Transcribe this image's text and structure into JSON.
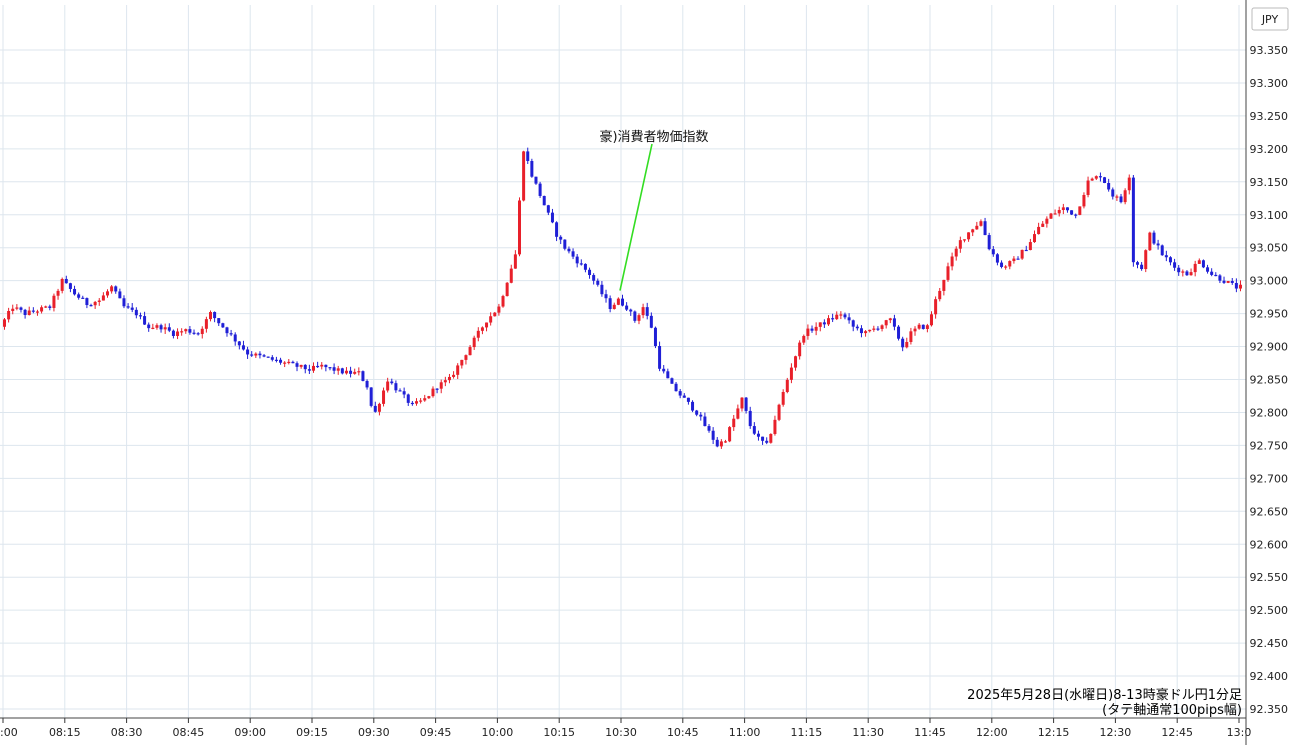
{
  "chart_data": {
    "type": "candlestick",
    "currency_label": "JPY",
    "y_ticks": [
      "93.350",
      "93.300",
      "93.250",
      "93.200",
      "93.150",
      "93.100",
      "93.050",
      "93.000",
      "92.950",
      "92.900",
      "92.850",
      "92.800",
      "92.750",
      "92.700",
      "92.650",
      "92.600",
      "92.550",
      "92.500",
      "92.450",
      "92.400",
      "92.350"
    ],
    "ylim": [
      92.33,
      93.38
    ],
    "x_ticks": [
      {
        "t": 480,
        "label": ":00"
      },
      {
        "t": 495,
        "label": "08:15"
      },
      {
        "t": 510,
        "label": "08:30"
      },
      {
        "t": 525,
        "label": "08:45"
      },
      {
        "t": 540,
        "label": "09:00"
      },
      {
        "t": 555,
        "label": "09:15"
      },
      {
        "t": 570,
        "label": "09:30"
      },
      {
        "t": 585,
        "label": "09:45"
      },
      {
        "t": 600,
        "label": "10:00"
      },
      {
        "t": 615,
        "label": "10:15"
      },
      {
        "t": 630,
        "label": "10:30"
      },
      {
        "t": 645,
        "label": "10:45"
      },
      {
        "t": 660,
        "label": "11:00"
      },
      {
        "t": 675,
        "label": "11:15"
      },
      {
        "t": 690,
        "label": "11:30"
      },
      {
        "t": 705,
        "label": "11:45"
      },
      {
        "t": 720,
        "label": "12:00"
      },
      {
        "t": 735,
        "label": "12:15"
      },
      {
        "t": 750,
        "label": "12:30"
      },
      {
        "t": 765,
        "label": "12:45"
      },
      {
        "t": 780,
        "label": "13:0"
      }
    ],
    "price_path": [
      [
        480,
        92.93
      ],
      [
        483,
        92.96
      ],
      [
        486,
        92.95
      ],
      [
        489,
        92.955
      ],
      [
        492,
        92.96
      ],
      [
        495,
        93.0
      ],
      [
        498,
        92.98
      ],
      [
        501,
        92.965
      ],
      [
        504,
        92.97
      ],
      [
        507,
        92.99
      ],
      [
        510,
        92.96
      ],
      [
        513,
        92.95
      ],
      [
        516,
        92.93
      ],
      [
        519,
        92.93
      ],
      [
        522,
        92.92
      ],
      [
        525,
        92.925
      ],
      [
        528,
        92.92
      ],
      [
        531,
        92.95
      ],
      [
        534,
        92.93
      ],
      [
        537,
        92.91
      ],
      [
        540,
        92.89
      ],
      [
        543,
        92.885
      ],
      [
        546,
        92.88
      ],
      [
        549,
        92.875
      ],
      [
        552,
        92.87
      ],
      [
        555,
        92.865
      ],
      [
        558,
        92.87
      ],
      [
        561,
        92.865
      ],
      [
        564,
        92.86
      ],
      [
        567,
        92.86
      ],
      [
        569,
        92.84
      ],
      [
        570,
        92.81
      ],
      [
        571,
        92.8
      ],
      [
        574,
        92.85
      ],
      [
        577,
        92.83
      ],
      [
        580,
        92.81
      ],
      [
        583,
        92.82
      ],
      [
        586,
        92.84
      ],
      [
        589,
        92.85
      ],
      [
        592,
        92.88
      ],
      [
        595,
        92.91
      ],
      [
        598,
        92.94
      ],
      [
        601,
        92.96
      ],
      [
        603,
        93.0
      ],
      [
        605,
        93.04
      ],
      [
        607,
        93.2
      ],
      [
        609,
        93.16
      ],
      [
        611,
        93.13
      ],
      [
        613,
        93.1
      ],
      [
        615,
        93.07
      ],
      [
        617,
        93.05
      ],
      [
        620,
        93.03
      ],
      [
        623,
        93.01
      ],
      [
        626,
        92.98
      ],
      [
        628,
        92.96
      ],
      [
        630,
        92.97
      ],
      [
        632,
        92.96
      ],
      [
        634,
        92.94
      ],
      [
        636,
        92.96
      ],
      [
        638,
        92.93
      ],
      [
        640,
        92.87
      ],
      [
        643,
        92.84
      ],
      [
        646,
        92.82
      ],
      [
        649,
        92.8
      ],
      [
        652,
        92.77
      ],
      [
        654,
        92.75
      ],
      [
        656,
        92.76
      ],
      [
        658,
        92.79
      ],
      [
        660,
        92.82
      ],
      [
        662,
        92.78
      ],
      [
        664,
        92.76
      ],
      [
        666,
        92.75
      ],
      [
        668,
        92.79
      ],
      [
        670,
        92.83
      ],
      [
        672,
        92.87
      ],
      [
        675,
        92.92
      ],
      [
        678,
        92.93
      ],
      [
        681,
        92.94
      ],
      [
        684,
        92.95
      ],
      [
        687,
        92.93
      ],
      [
        690,
        92.92
      ],
      [
        693,
        92.93
      ],
      [
        696,
        92.94
      ],
      [
        699,
        92.9
      ],
      [
        701,
        92.92
      ],
      [
        703,
        92.93
      ],
      [
        705,
        92.93
      ],
      [
        707,
        92.97
      ],
      [
        710,
        93.02
      ],
      [
        713,
        93.06
      ],
      [
        716,
        93.08
      ],
      [
        718,
        93.09
      ],
      [
        720,
        93.05
      ],
      [
        723,
        93.02
      ],
      [
        726,
        93.03
      ],
      [
        729,
        93.05
      ],
      [
        732,
        93.08
      ],
      [
        735,
        93.1
      ],
      [
        738,
        93.11
      ],
      [
        741,
        93.1
      ],
      [
        744,
        93.15
      ],
      [
        747,
        93.16
      ],
      [
        750,
        93.13
      ],
      [
        752,
        93.12
      ],
      [
        754,
        93.16
      ],
      [
        755,
        93.03
      ],
      [
        757,
        93.02
      ],
      [
        759,
        93.07
      ],
      [
        762,
        93.04
      ],
      [
        765,
        93.02
      ],
      [
        768,
        93.01
      ],
      [
        771,
        93.03
      ],
      [
        774,
        93.01
      ],
      [
        777,
        93.0
      ],
      [
        780,
        92.99
      ]
    ],
    "annotation": {
      "t": 630,
      "price": 92.985,
      "label": "豪)消費者物価指数"
    },
    "notes": [
      "2025年5月28日(水曜日)8-13時豪ドル円1分足",
      "(タテ軸通常100pips幅)"
    ],
    "colors": {
      "up": "#e8202a",
      "down": "#1f1fd6",
      "grid": "#dde6ee",
      "annotation_line": "#33dd22"
    }
  }
}
